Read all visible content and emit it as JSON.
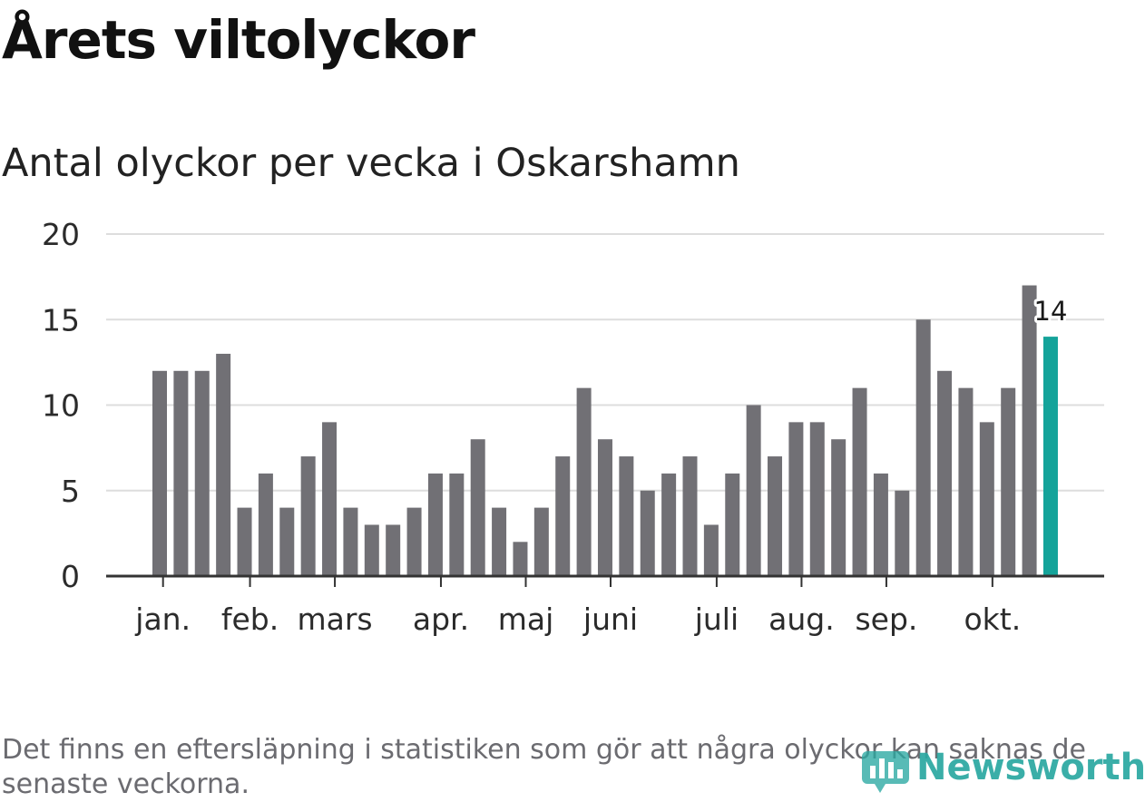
{
  "header": {
    "title": "Årets viltolyckor",
    "subtitle": "Antal olyckor per vecka i Oskarshamn"
  },
  "footer": {
    "note": "Det finns en eftersläpning i statistiken som gör att några olyckor kan saknas de senaste veckorna.",
    "logo_text": "Newsworthy"
  },
  "colors": {
    "bar": "#717075",
    "highlight": "#14a39a",
    "grid": "#dddddd",
    "axis": "#333333"
  },
  "chart_data": {
    "type": "bar",
    "title": "Antal olyckor per vecka i Oskarshamn",
    "xlabel": "",
    "ylabel": "",
    "ylim": [
      0,
      20
    ],
    "yticks": [
      0,
      5,
      10,
      15,
      20
    ],
    "grid": true,
    "values": [
      12,
      12,
      12,
      13,
      4,
      6,
      4,
      7,
      9,
      4,
      3,
      3,
      4,
      6,
      6,
      8,
      4,
      2,
      4,
      7,
      11,
      8,
      7,
      5,
      6,
      7,
      3,
      6,
      10,
      7,
      9,
      9,
      8,
      11,
      6,
      5,
      15,
      12,
      11,
      9,
      11,
      17,
      14
    ],
    "highlight_index": 42,
    "highlight_label": "14",
    "month_ticks": [
      {
        "label": "jan.",
        "week": 0.5
      },
      {
        "label": "feb.",
        "week": 4.6
      },
      {
        "label": "mars",
        "week": 8.6
      },
      {
        "label": "apr.",
        "week": 13.6
      },
      {
        "label": "maj",
        "week": 17.6
      },
      {
        "label": "juni",
        "week": 21.6
      },
      {
        "label": "juli",
        "week": 26.6
      },
      {
        "label": "aug.",
        "week": 30.6
      },
      {
        "label": "sep.",
        "week": 34.6
      },
      {
        "label": "okt.",
        "week": 39.6
      }
    ]
  }
}
